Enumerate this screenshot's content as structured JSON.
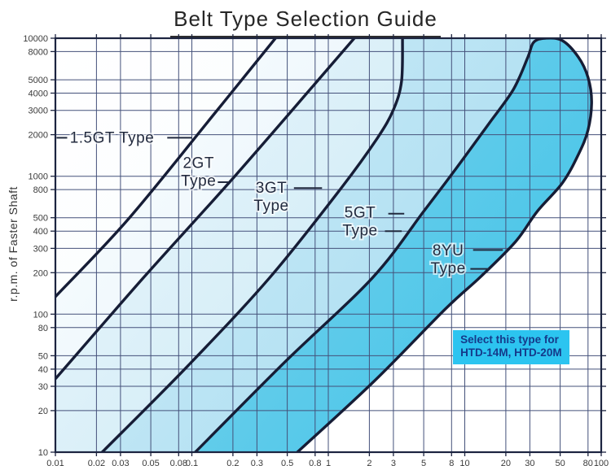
{
  "page": {
    "title": "Belt Type Selection Guide",
    "y_axis_title": "r.p.m. of Faster Shaft"
  },
  "colors": {
    "frame": "#1c2440",
    "grid": "#44517a",
    "curve": "#161d36",
    "tick_text": "#3b3b3b",
    "region_label_text": "#222a3e",
    "leader": "#222a3e",
    "callout_bg": "#2cc4f0",
    "callout_text": "#153a8a",
    "title_text": "#262626"
  },
  "chart_data": {
    "type": "area",
    "title": "Belt Type Selection Guide",
    "xlabel": "",
    "ylabel": "r.p.m. of Faster Shaft",
    "x_scale": "log",
    "y_scale": "log",
    "xlim": [
      0.01,
      100
    ],
    "ylim": [
      10,
      10000
    ],
    "grid": true,
    "x_ticks": {
      "values": [
        0.01,
        0.02,
        0.03,
        0.05,
        0.08,
        0.1,
        0.2,
        0.3,
        0.5,
        0.8,
        1,
        2,
        3,
        5,
        8,
        10,
        20,
        30,
        50,
        80,
        100
      ],
      "labels": [
        "0.01",
        "0.02",
        "0.03",
        "0.05",
        "0.08",
        "0.1",
        "0.2",
        "0.3",
        "0.5",
        "0.8",
        "1",
        "2",
        "3",
        "5",
        "8",
        "10",
        "20",
        "30",
        "50",
        "80",
        "100"
      ]
    },
    "y_ticks": {
      "values": [
        10,
        20,
        30,
        40,
        50,
        80,
        100,
        200,
        300,
        400,
        500,
        800,
        1000,
        2000,
        3000,
        4000,
        5000,
        8000,
        10000
      ],
      "labels": [
        "10",
        "20",
        "30",
        "40",
        "50",
        "80",
        "100",
        "200",
        "300",
        "400",
        "500",
        "800",
        "1000",
        "2000",
        "3000",
        "4000",
        "5000",
        "8000",
        "10000"
      ]
    },
    "regions": [
      {
        "name": "1.5GT",
        "label_lines": [
          "1.5GT Type"
        ],
        "label_x": 0.026,
        "label_y": 1900,
        "color_top_left": "#ffffff",
        "color_bottom_right": "#f3fafd"
      },
      {
        "name": "2GT",
        "label_lines": [
          "2GT",
          "Type"
        ],
        "label_x": 0.112,
        "label_y": 1070,
        "color_top_left": "#fcfeff",
        "color_bottom_right": "#d9edf8"
      },
      {
        "name": "3GT",
        "label_lines": [
          "3GT",
          "Type"
        ],
        "label_x": 0.382,
        "label_y": 710,
        "color_top_left": "#edf7fc",
        "color_bottom_right": "#bfe5f3"
      },
      {
        "name": "5GT",
        "label_lines": [
          "5GT",
          "Type"
        ],
        "label_x": 1.71,
        "label_y": 470,
        "color_top_left": "#d7eef8",
        "color_bottom_right": "#9cd9ef"
      },
      {
        "name": "8YU",
        "label_lines": [
          "8YU",
          "Type"
        ],
        "label_x": 7.55,
        "label_y": 250,
        "color_top_left": "#8ed8ee",
        "color_bottom_right": "#39c1e7"
      }
    ],
    "boundaries": {
      "A": [
        [
          0.01,
          134
        ],
        [
          0.034,
          485
        ],
        [
          0.146,
          2830
        ],
        [
          0.41,
          10000
        ]
      ],
      "B": [
        [
          0.01,
          34
        ],
        [
          0.044,
          183
        ],
        [
          0.21,
          1020
        ],
        [
          1.55,
          10000
        ]
      ],
      "C": [
        [
          0.022,
          10
        ],
        [
          0.093,
          42
        ],
        [
          0.37,
          183
        ],
        [
          1.26,
          835
        ],
        [
          2.28,
          1880
        ],
        [
          3.0,
          3030
        ],
        [
          3.44,
          4880
        ],
        [
          3.5,
          10000
        ]
      ],
      "D_left": [
        [
          0.106,
          10
        ],
        [
          0.48,
          45
        ],
        [
          2.1,
          183
        ],
        [
          5.0,
          556
        ],
        [
          8.65,
          1140
        ],
        [
          15,
          2400
        ],
        [
          22.7,
          4250
        ],
        [
          29,
          7300
        ],
        [
          32,
          9350
        ],
        [
          39,
          10000
        ]
      ],
      "D_right": [
        [
          52,
          9600
        ],
        [
          68,
          7300
        ],
        [
          80,
          5200
        ],
        [
          85,
          3470
        ],
        [
          80,
          2160
        ],
        [
          68,
          1435
        ],
        [
          52,
          894
        ],
        [
          34,
          556
        ],
        [
          23.6,
          336
        ],
        [
          13.1,
          187
        ],
        [
          7.2,
          109
        ],
        [
          2.19,
          33
        ],
        [
          0.593,
          10
        ]
      ]
    },
    "leader_lines": [
      {
        "x1": 0.0102,
        "y1": 1900,
        "x2": 0.0122,
        "y2": 1900
      },
      {
        "x1": 0.066,
        "y1": 1900,
        "x2": 0.1,
        "y2": 1900
      },
      {
        "x1": 0.155,
        "y1": 905,
        "x2": 0.185,
        "y2": 905
      },
      {
        "x1": 0.56,
        "y1": 820,
        "x2": 0.9,
        "y2": 820
      },
      {
        "x1": 2.75,
        "y1": 535,
        "x2": 3.6,
        "y2": 535
      },
      {
        "x1": 2.6,
        "y1": 400,
        "x2": 3.45,
        "y2": 400
      },
      {
        "x1": 11.5,
        "y1": 292,
        "x2": 19,
        "y2": 292
      },
      {
        "x1": 11,
        "y1": 213,
        "x2": 15,
        "y2": 213
      }
    ],
    "annotation": {
      "lines": [
        "Select this type for",
        "HTD-14M, HTD-20M"
      ],
      "x": 8.2,
      "y": 76
    }
  }
}
